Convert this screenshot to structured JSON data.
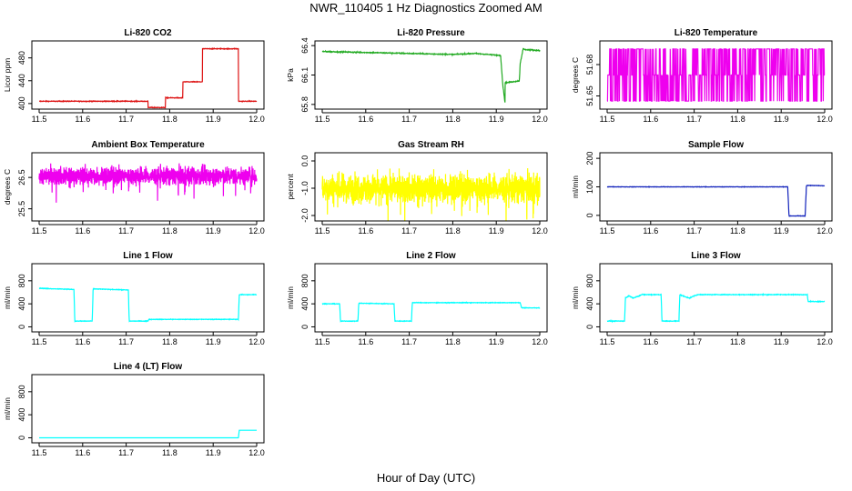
{
  "figure": {
    "title": "NWR_110405  1 Hz Diagnostics Zoomed AM",
    "xlabel": "Hour of Day (UTC)"
  },
  "chart_data": [
    {
      "type": "line",
      "title": "Li-820 CO2",
      "ylabel": "Licor ppm",
      "color": "#dd1111",
      "xlim": [
        11.5,
        12.0
      ],
      "ylim": [
        395,
        505
      ],
      "xticks": [
        "11.5",
        "11.6",
        "11.7",
        "11.8",
        "11.9",
        "12.0"
      ],
      "yticks": [
        400,
        440,
        480
      ],
      "series": [
        {
          "name": "CO2",
          "x": [
            11.5,
            11.75,
            11.75,
            11.79,
            11.79,
            11.83,
            11.83,
            11.875,
            11.875,
            11.958,
            11.958,
            12.0
          ],
          "y": [
            404,
            404,
            393,
            393,
            410,
            410,
            438,
            438,
            496,
            496,
            404,
            404
          ],
          "noise": 1
        }
      ]
    },
    {
      "type": "line",
      "title": "Li-820 Pressure",
      "ylabel": "kPa",
      "color": "#22aa22",
      "xlim": [
        11.5,
        12.0
      ],
      "ylim": [
        65.78,
        66.42
      ],
      "xticks": [
        "11.5",
        "11.6",
        "11.7",
        "11.8",
        "11.9",
        "12.0"
      ],
      "yticks": [
        "65.8",
        "66.1",
        "66.4"
      ],
      "series": [
        {
          "name": "Pressure",
          "x": [
            11.5,
            11.6,
            11.7,
            11.8,
            11.85,
            11.91,
            11.915,
            11.92,
            11.92,
            11.953,
            11.955,
            11.962,
            11.965,
            12.0
          ],
          "y": [
            66.34,
            66.33,
            66.32,
            66.31,
            66.32,
            66.3,
            66.0,
            65.82,
            66.02,
            66.04,
            66.22,
            66.37,
            66.36,
            66.35
          ],
          "noise": 0.008
        }
      ]
    },
    {
      "type": "line",
      "title": "Li-820 Temperature",
      "ylabel": "degrees C",
      "color": "#ee00ee",
      "xlim": [
        11.5,
        12.0
      ],
      "ylim": [
        51.64,
        51.7
      ],
      "xticks": [
        "11.5",
        "11.6",
        "11.7",
        "11.8",
        "11.9",
        "12.0"
      ],
      "yticks": [
        "51.65",
        "51.68"
      ],
      "series": [
        {
          "name": "Temperature",
          "levels": [
            51.645,
            51.67,
            51.695
          ],
          "x_range": [
            11.5,
            12.0
          ]
        }
      ]
    },
    {
      "type": "line",
      "title": "Ambient Box Temperature",
      "ylabel": "degrees C",
      "color": "#ee00ee",
      "xlim": [
        11.5,
        12.0
      ],
      "ylim": [
        25.2,
        27.2
      ],
      "xticks": [
        "11.5",
        "11.6",
        "11.7",
        "11.8",
        "11.9",
        "12.0"
      ],
      "yticks": [
        "25.5",
        "26.5"
      ],
      "series": [
        {
          "name": "Box Temperature",
          "center": 26.55,
          "spread": 0.3,
          "x_range": [
            11.5,
            12.0
          ]
        }
      ]
    },
    {
      "type": "line",
      "title": "Gas Stream RH",
      "ylabel": "percent",
      "color": "#ffff00",
      "xlim": [
        11.5,
        12.0
      ],
      "ylim": [
        -2.1,
        0.2
      ],
      "xticks": [
        "11.5",
        "11.6",
        "11.7",
        "11.8",
        "11.9",
        "12.0"
      ],
      "yticks": [
        "-2.0",
        "-1.0",
        "0.0"
      ],
      "series": [
        {
          "name": "RH",
          "center": -1.0,
          "spread": 0.55,
          "x_range": [
            11.5,
            12.0
          ]
        }
      ]
    },
    {
      "type": "line",
      "title": "Sample Flow",
      "ylabel": "ml/min",
      "color": "#1122bb",
      "xlim": [
        11.5,
        12.0
      ],
      "ylim": [
        -10,
        210
      ],
      "xticks": [
        "11.5",
        "11.6",
        "11.7",
        "11.8",
        "11.9",
        "12.0"
      ],
      "yticks": [
        0,
        100,
        200
      ],
      "series": [
        {
          "name": "Sample Flow",
          "x": [
            11.5,
            11.915,
            11.918,
            11.955,
            11.958,
            12.0
          ],
          "y": [
            100,
            100,
            -2,
            -2,
            105,
            104
          ],
          "noise": 1.2
        }
      ]
    },
    {
      "type": "line",
      "title": "Line 1 Flow",
      "ylabel": "ml/min",
      "color": "#00ffff",
      "xlim": [
        11.5,
        12.0
      ],
      "ylim": [
        -40,
        1050
      ],
      "xticks": [
        "11.5",
        "11.6",
        "11.7",
        "11.8",
        "11.9",
        "12.0"
      ],
      "yticks": [
        0,
        400,
        800
      ],
      "series": [
        {
          "name": "Line 1",
          "x": [
            11.5,
            11.58,
            11.582,
            11.622,
            11.624,
            11.705,
            11.707,
            11.75,
            11.752,
            11.958,
            11.96,
            12.0
          ],
          "y": [
            670,
            650,
            100,
            100,
            660,
            640,
            100,
            100,
            130,
            130,
            560,
            560
          ],
          "noise": 8
        }
      ]
    },
    {
      "type": "line",
      "title": "Line 2 Flow",
      "ylabel": "ml/min",
      "color": "#00ffff",
      "xlim": [
        11.5,
        12.0
      ],
      "ylim": [
        -40,
        1050
      ],
      "xticks": [
        "11.5",
        "11.6",
        "11.7",
        "11.8",
        "11.9",
        "12.0"
      ],
      "yticks": [
        0,
        400,
        800
      ],
      "series": [
        {
          "name": "Line 2",
          "x": [
            11.5,
            11.54,
            11.542,
            11.582,
            11.584,
            11.665,
            11.667,
            11.705,
            11.707,
            11.955,
            11.958,
            12.0
          ],
          "y": [
            400,
            400,
            100,
            100,
            410,
            400,
            100,
            100,
            420,
            420,
            330,
            330
          ],
          "noise": 8
        }
      ]
    },
    {
      "type": "line",
      "title": "Line 3 Flow",
      "ylabel": "ml/min",
      "color": "#00ffff",
      "xlim": [
        11.5,
        12.0
      ],
      "ylim": [
        -40,
        1050
      ],
      "xticks": [
        "11.5",
        "11.6",
        "11.7",
        "11.8",
        "11.9",
        "12.0"
      ],
      "yticks": [
        0,
        400,
        800
      ],
      "series": [
        {
          "name": "Line 3",
          "x": [
            11.5,
            11.54,
            11.542,
            11.55,
            11.56,
            11.58,
            11.624,
            11.626,
            11.665,
            11.667,
            11.68,
            11.69,
            11.7,
            11.71,
            11.96,
            11.962,
            12.0
          ],
          "y": [
            100,
            100,
            500,
            540,
            500,
            560,
            560,
            100,
            100,
            560,
            520,
            500,
            540,
            560,
            560,
            440,
            440
          ],
          "noise": 10
        }
      ]
    },
    {
      "type": "line",
      "title": "Line 4 (LT) Flow",
      "ylabel": "ml/min",
      "color": "#00ffff",
      "xlim": [
        11.5,
        12.0
      ],
      "ylim": [
        -40,
        1050
      ],
      "xticks": [
        "11.5",
        "11.6",
        "11.7",
        "11.8",
        "11.9",
        "12.0"
      ],
      "yticks": [
        0,
        400,
        800
      ],
      "series": [
        {
          "name": "Line 4",
          "x": [
            11.5,
            11.958,
            11.96,
            12.0
          ],
          "y": [
            0,
            0,
            130,
            130
          ],
          "noise": 0
        }
      ]
    }
  ]
}
